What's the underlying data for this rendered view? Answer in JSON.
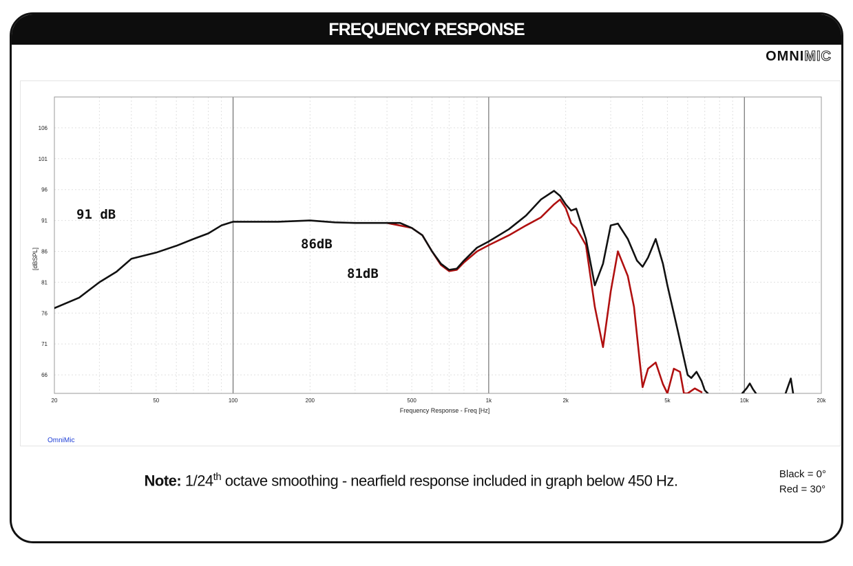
{
  "header": {
    "title": "FREQUENCY RESPONSE"
  },
  "brand": {
    "strong": "OMNI",
    "light": "MIC"
  },
  "source_label": "OmniMic",
  "note": {
    "label": "Note:",
    "fraction": "1/24",
    "superscript": "th",
    "text": " octave smoothing - nearfield response included in graph below 450 Hz."
  },
  "legend": {
    "black": "Black = 0°",
    "red": "Red = 30°"
  },
  "annotations": [
    "91 dB",
    "86dB",
    "81dB"
  ],
  "colors": {
    "black_series": "#111111",
    "red_series": "#b01010",
    "grid": "#e0e0e0",
    "grid_major": "#555555"
  },
  "chart_data": {
    "type": "line",
    "title": "",
    "xlabel": "Frequency Response - Freq [Hz]",
    "ylabel": "[dBSPL]",
    "xscale": "log",
    "xlim": [
      20,
      20000
    ],
    "ylim": [
      63,
      111
    ],
    "xticks": [
      20,
      50,
      100,
      200,
      500,
      1000,
      2000,
      5000,
      10000,
      20000
    ],
    "xtick_labels": [
      "20",
      "50",
      "100",
      "200",
      "500",
      "1k",
      "2k",
      "5k",
      "10k",
      "20k"
    ],
    "yticks": [
      66,
      71,
      76,
      81,
      86,
      91,
      96,
      101,
      106
    ],
    "ytick_labels": [
      "66",
      "71",
      "76",
      "81",
      "86",
      "91",
      "96",
      "101",
      "106"
    ],
    "grid": true,
    "legend_position": "bottom-right",
    "series": [
      {
        "name": "Black = 0°",
        "color": "#111111",
        "x": [
          20,
          25,
          30,
          35,
          40,
          50,
          60,
          70,
          80,
          90,
          100,
          120,
          150,
          200,
          250,
          300,
          400,
          450,
          500,
          550,
          600,
          650,
          700,
          750,
          800,
          900,
          1000,
          1200,
          1400,
          1600,
          1800,
          1900,
          2000,
          2100,
          2200,
          2400,
          2600,
          2800,
          3000,
          3200,
          3500,
          3800,
          4000,
          4200,
          4500,
          4800,
          5000,
          5500,
          6000,
          6200,
          6500,
          6800,
          7000,
          7200
        ],
        "y": [
          76.8,
          78.5,
          81.0,
          82.7,
          84.8,
          85.8,
          86.9,
          88.0,
          88.9,
          90.2,
          90.8,
          90.8,
          90.8,
          91.0,
          90.7,
          90.6,
          90.6,
          90.6,
          89.8,
          88.6,
          86.0,
          84.0,
          83.0,
          83.2,
          84.5,
          86.6,
          87.6,
          89.6,
          91.8,
          94.4,
          95.8,
          95.0,
          93.6,
          92.6,
          92.9,
          88.0,
          80.5,
          84.0,
          90.2,
          90.5,
          88.0,
          84.5,
          83.5,
          85.0,
          88.0,
          84.0,
          80.5,
          73.0,
          66.0,
          65.5,
          66.5,
          65.0,
          63.5,
          63.0
        ]
      },
      {
        "name": "Red = 30°",
        "color": "#b01010",
        "x": [
          400,
          500,
          550,
          600,
          650,
          700,
          750,
          800,
          900,
          1000,
          1200,
          1400,
          1600,
          1800,
          1900,
          2000,
          2100,
          2200,
          2400,
          2600,
          2800,
          3000,
          3200,
          3500,
          3700,
          3900,
          4000,
          4200,
          4500,
          4800,
          5000,
          5300,
          5600,
          5800,
          6000,
          6400,
          6800
        ],
        "y": [
          90.6,
          89.8,
          88.6,
          86.0,
          83.8,
          82.8,
          83.0,
          84.2,
          86.0,
          87.0,
          88.6,
          90.2,
          91.5,
          93.6,
          94.4,
          93.0,
          90.6,
          89.8,
          87.0,
          77.0,
          70.5,
          79.5,
          86.0,
          82.0,
          77.0,
          68.0,
          64.0,
          67.0,
          68.0,
          64.5,
          63.0,
          67.0,
          66.5,
          63.0,
          63.0,
          63.8,
          63.2
        ]
      },
      {
        "name": "",
        "color": "#111111",
        "x": [
          9800,
          10200,
          10500,
          10800,
          11100
        ],
        "y": [
          63.0,
          63.8,
          64.6,
          63.7,
          63.0
        ]
      },
      {
        "name": "",
        "color": "#111111",
        "x": [
          14500,
          14900,
          15200,
          15500
        ],
        "y": [
          63.0,
          64.4,
          65.4,
          63.1
        ]
      }
    ]
  }
}
